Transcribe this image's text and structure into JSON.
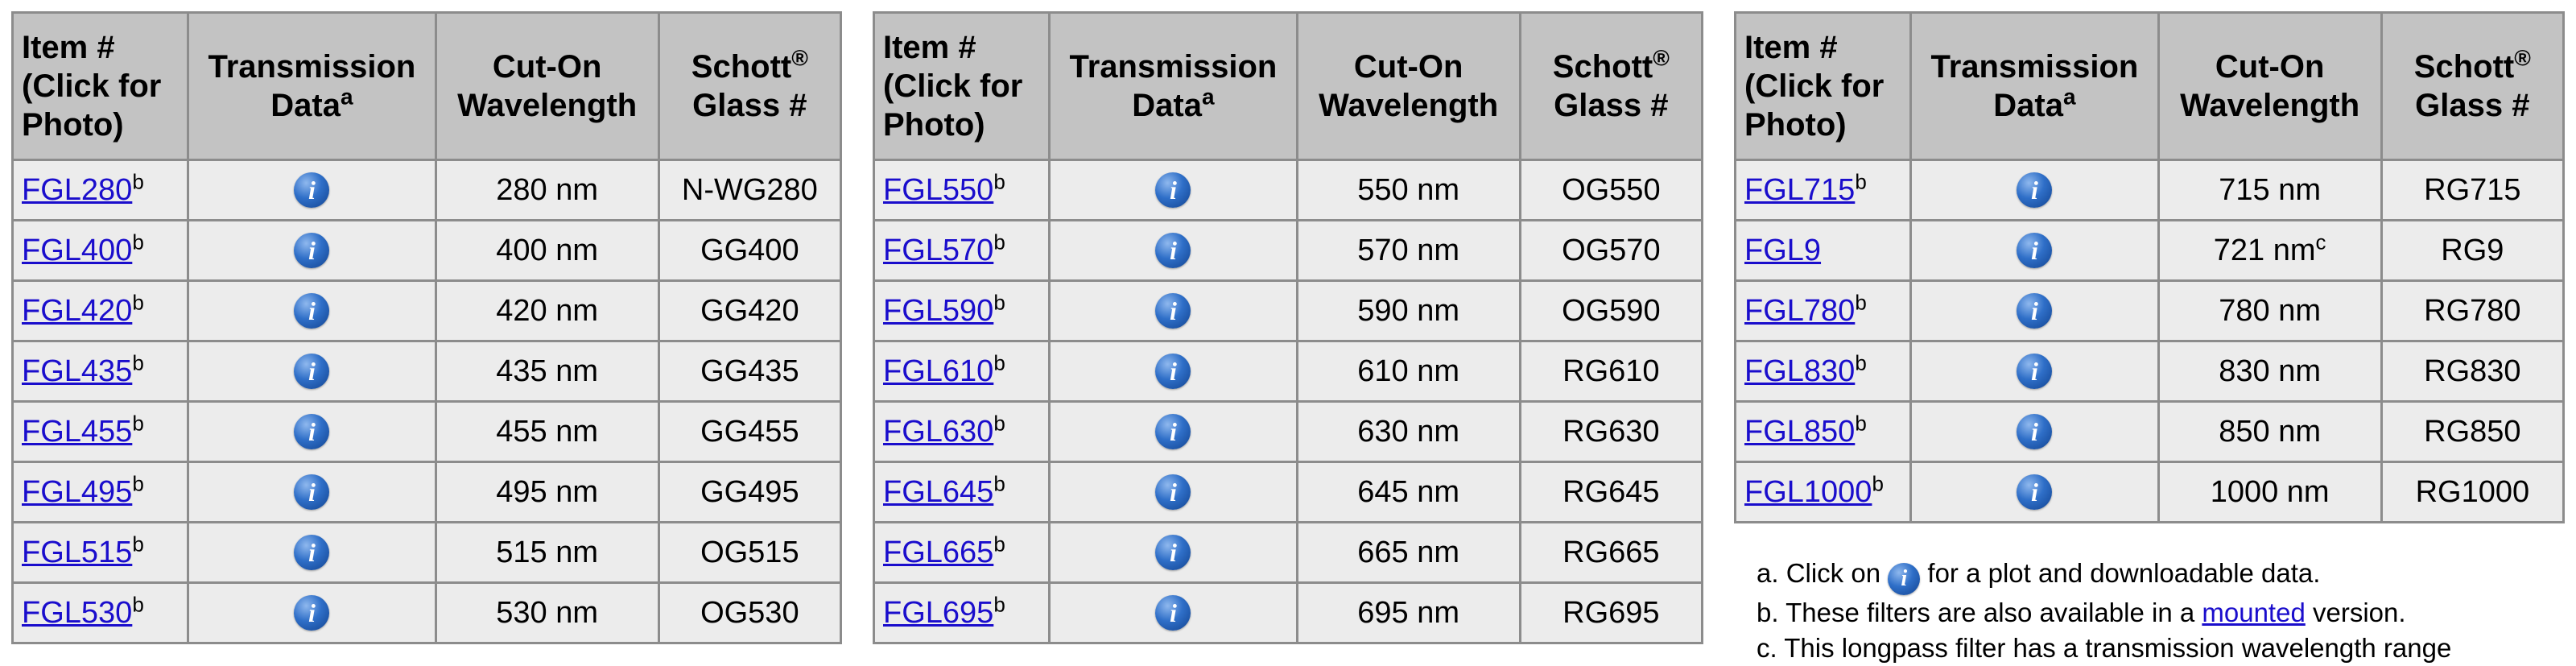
{
  "headers": {
    "item_lines": [
      "Item #",
      "(Click for",
      "Photo)"
    ],
    "transmission": "Transmission",
    "data": "Data",
    "data_sup": "a",
    "cut_on": "Cut-On",
    "wavelength": "Wavelength",
    "schott": "Schott",
    "registered": "®",
    "glass": "Glass #"
  },
  "info_icon": "info-circle-icon",
  "colors": {
    "header_bg": "#c3c3c3",
    "cell_bg": "#ececec",
    "border": "#8c8c8c",
    "link": "#1a0dcc",
    "icon": "#2f6fc8"
  },
  "tables": [
    {
      "rows": [
        {
          "item": "FGL280",
          "sup": "b",
          "wavelength": "280 nm",
          "wl_sup": "",
          "glass": "N-WG280"
        },
        {
          "item": "FGL400",
          "sup": "b",
          "wavelength": "400 nm",
          "wl_sup": "",
          "glass": "GG400"
        },
        {
          "item": "FGL420",
          "sup": "b",
          "wavelength": "420 nm",
          "wl_sup": "",
          "glass": "GG420"
        },
        {
          "item": "FGL435",
          "sup": "b",
          "wavelength": "435 nm",
          "wl_sup": "",
          "glass": "GG435"
        },
        {
          "item": "FGL455",
          "sup": "b",
          "wavelength": "455 nm",
          "wl_sup": "",
          "glass": "GG455"
        },
        {
          "item": "FGL495",
          "sup": "b",
          "wavelength": "495 nm",
          "wl_sup": "",
          "glass": "GG495"
        },
        {
          "item": "FGL515",
          "sup": "b",
          "wavelength": "515 nm",
          "wl_sup": "",
          "glass": "OG515"
        },
        {
          "item": "FGL530",
          "sup": "b",
          "wavelength": "530 nm",
          "wl_sup": "",
          "glass": "OG530"
        }
      ]
    },
    {
      "rows": [
        {
          "item": "FGL550",
          "sup": "b",
          "wavelength": "550 nm",
          "wl_sup": "",
          "glass": "OG550"
        },
        {
          "item": "FGL570",
          "sup": "b",
          "wavelength": "570 nm",
          "wl_sup": "",
          "glass": "OG570"
        },
        {
          "item": "FGL590",
          "sup": "b",
          "wavelength": "590 nm",
          "wl_sup": "",
          "glass": "OG590"
        },
        {
          "item": "FGL610",
          "sup": "b",
          "wavelength": "610 nm",
          "wl_sup": "",
          "glass": "RG610"
        },
        {
          "item": "FGL630",
          "sup": "b",
          "wavelength": "630 nm",
          "wl_sup": "",
          "glass": "RG630"
        },
        {
          "item": "FGL645",
          "sup": "b",
          "wavelength": "645 nm",
          "wl_sup": "",
          "glass": "RG645"
        },
        {
          "item": "FGL665",
          "sup": "b",
          "wavelength": "665 nm",
          "wl_sup": "",
          "glass": "RG665"
        },
        {
          "item": "FGL695",
          "sup": "b",
          "wavelength": "695 nm",
          "wl_sup": "",
          "glass": "RG695"
        }
      ]
    },
    {
      "rows": [
        {
          "item": "FGL715",
          "sup": "b",
          "wavelength": "715 nm",
          "wl_sup": "",
          "glass": "RG715"
        },
        {
          "item": "FGL9",
          "sup": "",
          "wavelength": "721 nm",
          "wl_sup": "c",
          "glass": "RG9"
        },
        {
          "item": "FGL780",
          "sup": "b",
          "wavelength": "780 nm",
          "wl_sup": "",
          "glass": "RG780"
        },
        {
          "item": "FGL830",
          "sup": "b",
          "wavelength": "830 nm",
          "wl_sup": "",
          "glass": "RG830"
        },
        {
          "item": "FGL850",
          "sup": "b",
          "wavelength": "850 nm",
          "wl_sup": "",
          "glass": "RG850"
        },
        {
          "item": "FGL1000",
          "sup": "b",
          "wavelength": "1000 nm",
          "wl_sup": "",
          "glass": "RG1000"
        }
      ]
    }
  ],
  "footnotes": {
    "a_prefix": "a.  Click on",
    "a_suffix": "for a plot and downloadable data.",
    "b_prefix": "b.  These filters are also available in a",
    "b_link": "mounted",
    "b_suffix": "version.",
    "c_text": "c.  This longpass filter has a transmission wavelength range"
  }
}
